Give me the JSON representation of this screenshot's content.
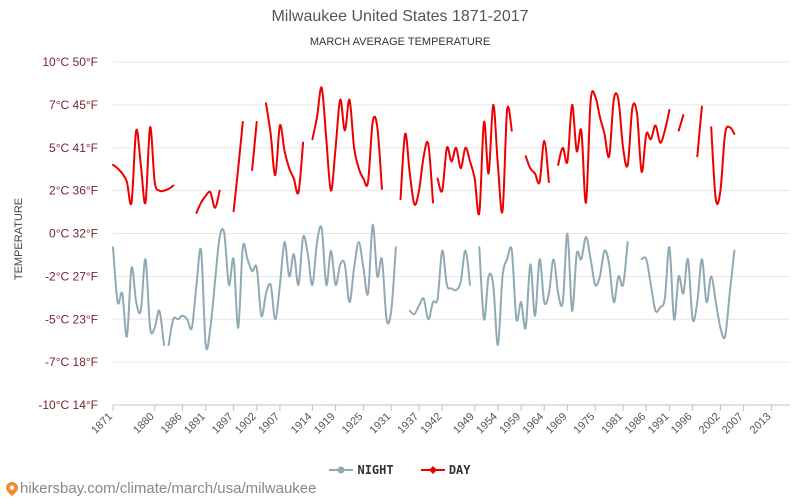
{
  "chart_data": {
    "type": "line",
    "title": "Milwaukee United States 1871-2017",
    "subtitle": "MARCH AVERAGE TEMPERATURE",
    "ylabel": "TEMPERATURE",
    "ylim": [
      -10,
      10
    ],
    "xlim": [
      1871,
      2017
    ],
    "y_ticks": [
      {
        "value": 10,
        "label": "10°C 50°F"
      },
      {
        "value": 7.5,
        "label": "7°C 45°F"
      },
      {
        "value": 5,
        "label": "5°C 41°F"
      },
      {
        "value": 2.5,
        "label": "2°C 36°F"
      },
      {
        "value": 0,
        "label": "0°C 32°F"
      },
      {
        "value": -2.5,
        "label": "-2°C 27°F"
      },
      {
        "value": -5,
        "label": "-5°C 23°F"
      },
      {
        "value": -7.5,
        "label": "-7°C 18°F"
      },
      {
        "value": -10,
        "label": "-10°C 14°F"
      }
    ],
    "x_ticks": [
      1871,
      1880,
      1886,
      1891,
      1897,
      1902,
      1907,
      1914,
      1919,
      1925,
      1931,
      1937,
      1942,
      1949,
      1954,
      1959,
      1964,
      1969,
      1975,
      1981,
      1986,
      1991,
      1996,
      2002,
      2007,
      2013
    ],
    "series": [
      {
        "name": "DAY",
        "color": "#ee0000",
        "segments": [
          [
            [
              1871,
              4.0
            ],
            [
              1872,
              3.8
            ],
            [
              1873,
              3.5
            ],
            [
              1874,
              3.0
            ],
            [
              1875,
              1.8
            ],
            [
              1876,
              6.0
            ],
            [
              1877,
              4.0
            ],
            [
              1878,
              1.8
            ],
            [
              1879,
              6.2
            ],
            [
              1880,
              3.0
            ],
            [
              1881,
              2.5
            ],
            [
              1882,
              2.5
            ],
            [
              1883,
              2.6
            ],
            [
              1884,
              2.8
            ]
          ],
          [
            [
              1889,
              1.2
            ],
            [
              1890,
              1.8
            ],
            [
              1891,
              2.2
            ],
            [
              1892,
              2.4
            ],
            [
              1893,
              1.5
            ],
            [
              1894,
              2.5
            ]
          ],
          [
            [
              1897,
              1.3
            ],
            [
              1898,
              3.8
            ],
            [
              1899,
              6.5
            ]
          ],
          [
            [
              1901,
              3.7
            ],
            [
              1902,
              6.5
            ]
          ],
          [
            [
              1904,
              7.6
            ],
            [
              1905,
              5.8
            ],
            [
              1906,
              3.4
            ],
            [
              1907,
              6.3
            ],
            [
              1908,
              4.8
            ],
            [
              1909,
              3.8
            ],
            [
              1910,
              3.2
            ],
            [
              1911,
              2.4
            ],
            [
              1912,
              5.3
            ]
          ],
          [
            [
              1914,
              5.5
            ],
            [
              1915,
              6.8
            ],
            [
              1916,
              8.5
            ],
            [
              1917,
              5.5
            ],
            [
              1918,
              2.5
            ],
            [
              1919,
              5.0
            ],
            [
              1920,
              7.8
            ],
            [
              1921,
              6.0
            ],
            [
              1922,
              7.8
            ],
            [
              1923,
              5.0
            ],
            [
              1924,
              3.8
            ],
            [
              1925,
              3.2
            ],
            [
              1926,
              3.0
            ],
            [
              1927,
              6.5
            ],
            [
              1928,
              6.2
            ],
            [
              1929,
              2.6
            ]
          ],
          [
            [
              1933,
              2.0
            ],
            [
              1934,
              5.8
            ],
            [
              1935,
              3.5
            ],
            [
              1936,
              1.7
            ],
            [
              1937,
              2.5
            ],
            [
              1938,
              4.5
            ],
            [
              1939,
              5.2
            ],
            [
              1940,
              1.8
            ]
          ],
          [
            [
              1941,
              3.2
            ],
            [
              1942,
              2.5
            ],
            [
              1943,
              5.0
            ],
            [
              1944,
              4.2
            ],
            [
              1945,
              5.0
            ],
            [
              1946,
              3.8
            ],
            [
              1947,
              5.0
            ],
            [
              1948,
              4.2
            ],
            [
              1949,
              3.2
            ],
            [
              1950,
              1.2
            ],
            [
              1951,
              6.5
            ],
            [
              1952,
              3.5
            ],
            [
              1953,
              7.5
            ],
            [
              1954,
              4.0
            ],
            [
              1955,
              1.3
            ],
            [
              1956,
              7.2
            ],
            [
              1957,
              6.0
            ]
          ],
          [
            [
              1960,
              4.5
            ],
            [
              1961,
              3.8
            ],
            [
              1962,
              3.5
            ],
            [
              1963,
              3.0
            ],
            [
              1964,
              5.4
            ],
            [
              1965,
              3.0
            ]
          ],
          [
            [
              1967,
              4.0
            ],
            [
              1968,
              5.0
            ],
            [
              1969,
              4.2
            ],
            [
              1970,
              7.5
            ],
            [
              1971,
              4.8
            ],
            [
              1972,
              6.0
            ],
            [
              1973,
              1.8
            ],
            [
              1974,
              7.7
            ],
            [
              1975,
              8.0
            ],
            [
              1976,
              6.8
            ],
            [
              1977,
              5.8
            ],
            [
              1978,
              4.5
            ],
            [
              1979,
              7.8
            ],
            [
              1980,
              7.8
            ],
            [
              1981,
              5.0
            ],
            [
              1982,
              4.0
            ],
            [
              1983,
              7.3
            ],
            [
              1984,
              7.0
            ],
            [
              1985,
              3.6
            ],
            [
              1986,
              5.8
            ],
            [
              1987,
              5.5
            ],
            [
              1988,
              6.3
            ],
            [
              1989,
              5.3
            ],
            [
              1990,
              6.0
            ],
            [
              1991,
              7.2
            ]
          ],
          [
            [
              1993,
              6.0
            ],
            [
              1994,
              6.9
            ]
          ],
          [
            [
              1997,
              4.5
            ],
            [
              1998,
              7.4
            ]
          ],
          [
            [
              2000,
              6.2
            ],
            [
              2001,
              2.0
            ],
            [
              2002,
              2.5
            ],
            [
              2003,
              5.8
            ],
            [
              2004,
              6.2
            ],
            [
              2005,
              5.8
            ]
          ]
        ]
      },
      {
        "name": "NIGHT",
        "color": "#90aab5",
        "segments": [
          [
            [
              1871,
              -0.8
            ],
            [
              1872,
              -4.0
            ],
            [
              1873,
              -3.5
            ],
            [
              1874,
              -6.0
            ],
            [
              1875,
              -2.0
            ],
            [
              1876,
              -4.0
            ],
            [
              1877,
              -4.5
            ],
            [
              1878,
              -1.5
            ],
            [
              1879,
              -5.5
            ],
            [
              1880,
              -5.5
            ],
            [
              1881,
              -4.5
            ],
            [
              1882,
              -6.5
            ]
          ],
          [
            [
              1883,
              -6.5
            ],
            [
              1884,
              -5.0
            ],
            [
              1885,
              -5.0
            ],
            [
              1886,
              -4.8
            ],
            [
              1887,
              -5.0
            ],
            [
              1888,
              -5.5
            ],
            [
              1889,
              -3.0
            ],
            [
              1890,
              -1.0
            ],
            [
              1891,
              -6.5
            ],
            [
              1892,
              -5.5
            ],
            [
              1893,
              -2.8
            ],
            [
              1894,
              -0.2
            ],
            [
              1895,
              0.0
            ],
            [
              1896,
              -3.0
            ],
            [
              1897,
              -1.5
            ],
            [
              1898,
              -5.5
            ],
            [
              1899,
              -0.8
            ],
            [
              1900,
              -1.5
            ],
            [
              1901,
              -2.2
            ],
            [
              1902,
              -2.0
            ],
            [
              1903,
              -4.8
            ],
            [
              1904,
              -3.5
            ],
            [
              1905,
              -3.0
            ],
            [
              1906,
              -5.0
            ],
            [
              1907,
              -3.0
            ],
            [
              1908,
              -0.5
            ],
            [
              1909,
              -2.5
            ],
            [
              1910,
              -1.2
            ],
            [
              1911,
              -3.0
            ],
            [
              1912,
              -0.2
            ],
            [
              1913,
              -1.2
            ],
            [
              1914,
              -3.0
            ],
            [
              1915,
              -0.5
            ],
            [
              1916,
              0.3
            ],
            [
              1917,
              -3.0
            ],
            [
              1918,
              -1.0
            ],
            [
              1919,
              -3.0
            ],
            [
              1920,
              -1.8
            ],
            [
              1921,
              -1.8
            ],
            [
              1922,
              -4.0
            ],
            [
              1923,
              -2.0
            ],
            [
              1924,
              -0.5
            ],
            [
              1925,
              -2.0
            ],
            [
              1926,
              -3.5
            ],
            [
              1927,
              0.5
            ],
            [
              1928,
              -2.5
            ],
            [
              1929,
              -1.5
            ],
            [
              1930,
              -5.0
            ],
            [
              1931,
              -4.5
            ],
            [
              1932,
              -0.8
            ]
          ],
          [
            [
              1935,
              -4.5
            ],
            [
              1936,
              -4.7
            ],
            [
              1937,
              -4.2
            ],
            [
              1938,
              -3.8
            ],
            [
              1939,
              -5.0
            ],
            [
              1940,
              -4.0
            ],
            [
              1941,
              -3.8
            ],
            [
              1942,
              -1.0
            ],
            [
              1943,
              -3.0
            ],
            [
              1944,
              -3.2
            ],
            [
              1945,
              -3.3
            ],
            [
              1946,
              -2.8
            ],
            [
              1947,
              -1.0
            ],
            [
              1948,
              -3.0
            ]
          ],
          [
            [
              1950,
              -0.8
            ],
            [
              1951,
              -5.0
            ],
            [
              1952,
              -2.5
            ],
            [
              1953,
              -3.0
            ],
            [
              1954,
              -6.5
            ],
            [
              1955,
              -2.5
            ],
            [
              1956,
              -1.5
            ],
            [
              1957,
              -1.0
            ],
            [
              1958,
              -5.0
            ],
            [
              1959,
              -4.0
            ],
            [
              1960,
              -5.5
            ],
            [
              1961,
              -1.8
            ],
            [
              1962,
              -4.8
            ],
            [
              1963,
              -1.5
            ],
            [
              1964,
              -4.0
            ],
            [
              1965,
              -3.5
            ],
            [
              1966,
              -1.5
            ],
            [
              1967,
              -3.5
            ],
            [
              1968,
              -4.0
            ],
            [
              1969,
              0.0
            ],
            [
              1970,
              -4.5
            ],
            [
              1971,
              -1.2
            ],
            [
              1972,
              -1.5
            ],
            [
              1973,
              -0.2
            ],
            [
              1974,
              -1.5
            ],
            [
              1975,
              -3.0
            ],
            [
              1976,
              -2.5
            ],
            [
              1977,
              -1.0
            ],
            [
              1978,
              -1.8
            ],
            [
              1979,
              -4.0
            ],
            [
              1980,
              -2.5
            ],
            [
              1981,
              -3.0
            ],
            [
              1982,
              -0.5
            ]
          ],
          [
            [
              1985,
              -1.5
            ],
            [
              1986,
              -1.5
            ],
            [
              1987,
              -3.0
            ],
            [
              1988,
              -4.5
            ],
            [
              1989,
              -4.3
            ],
            [
              1990,
              -3.8
            ],
            [
              1991,
              -0.8
            ],
            [
              1992,
              -5.0
            ],
            [
              1993,
              -2.5
            ],
            [
              1994,
              -3.5
            ],
            [
              1995,
              -1.5
            ],
            [
              1996,
              -5.0
            ],
            [
              1997,
              -4.0
            ],
            [
              1998,
              -1.5
            ],
            [
              1999,
              -4.0
            ],
            [
              2000,
              -2.5
            ],
            [
              2001,
              -4.0
            ],
            [
              2002,
              -5.5
            ],
            [
              2003,
              -6.0
            ],
            [
              2004,
              -3.5
            ],
            [
              2005,
              -1.0
            ]
          ]
        ]
      }
    ],
    "legend": [
      {
        "name": "NIGHT",
        "color": "#90aab5"
      },
      {
        "name": "DAY",
        "color": "#ee0000"
      }
    ],
    "legend_position": "bottom-center"
  },
  "credit": "hikersbay.com/climate/march/usa/milwaukee"
}
